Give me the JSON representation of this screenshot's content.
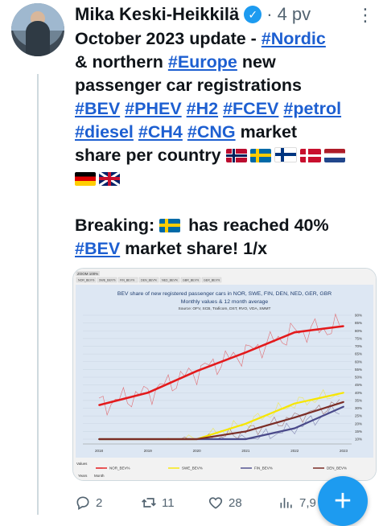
{
  "author": {
    "name": "Mika Keski-Heikkilä",
    "dot": "·",
    "time": "4 pv"
  },
  "tweet": {
    "line1_pre": "October 2023 update - ",
    "tag_nordic": "#Nordic",
    "line2_pre": "& northern ",
    "tag_europe": "#Europe",
    "line2_post": " new",
    "line3": "passenger car registrations",
    "tag_bev": "#BEV",
    "tag_phev": "#PHEV",
    "tag_h2": "#H2",
    "tag_fcev": "#FCEV",
    "tag_petrol": "#petrol",
    "tag_diesel": "#diesel",
    "tag_ch4": "#CH4",
    "tag_cng": "#CNG",
    "line5_post": " market",
    "line6": "share per country",
    "breaking_pre": "Breaking: ",
    "breaking_post": " has reached 40%",
    "tag_bev2": "#BEV",
    "last_post": " market share! 1/x"
  },
  "chart": {
    "title": "BEV share of new registered passenger cars in NOR, SWE, FIN, DEN, NED, GER, GBR",
    "subtitle": "Monthly values & 12 month average",
    "source": "Source: OFV, SCB, Traficom, DST, RVO, VDA, SMMT",
    "toolbar_label": "ZOOM 100%",
    "chips": [
      "NOR_BEV%",
      "SWE_BEV%",
      "FIN_BEV%",
      "DEN_BEV%",
      "NED_BEV%",
      "GBR_BEV%",
      "GER_BEV%"
    ],
    "y_ticks": [
      "90%",
      "85%",
      "80%",
      "75%",
      "70%",
      "65%",
      "60%",
      "55%",
      "50%",
      "45%",
      "40%",
      "35%",
      "30%",
      "25%",
      "20%",
      "15%",
      "10%"
    ],
    "years": [
      "2018",
      "2019",
      "2020",
      "2021",
      "2022",
      "2023"
    ],
    "values_label": "Values",
    "legend": [
      "NOR_BEV%",
      "SWE_BEV%",
      "FIN_BEV%",
      "DEN_BEV%"
    ],
    "bottom_label": "Years",
    "bottom_label2": "Month",
    "colors": {
      "NOR": "#e31a1c",
      "SWE": "#f7e600",
      "FIN": "#4a4a8a",
      "DEN": "#7b2d26",
      "NED": "#f28c28",
      "GBR": "#1f6fc9",
      "GER": "#9a9a9a"
    }
  },
  "chart_data": {
    "type": "line",
    "title": "BEV share of new registered passenger cars in NOR, SWE, FIN, DEN, NED, GER, GBR",
    "subtitle": "Monthly values & 12 month average",
    "x": [
      "2018",
      "2019",
      "2020",
      "2021",
      "2022",
      "2023"
    ],
    "ylim": [
      0,
      90
    ],
    "series": [
      {
        "name": "NOR_BEV%",
        "values": [
          32,
          40,
          54,
          66,
          79,
          83
        ]
      },
      {
        "name": "SWE_BEV%",
        "values": [
          3,
          5,
          10,
          20,
          33,
          40
        ]
      },
      {
        "name": "FIN_BEV%",
        "values": [
          1,
          2,
          4,
          9,
          17,
          31
        ]
      },
      {
        "name": "DEN_BEV%",
        "values": [
          1,
          3,
          8,
          15,
          24,
          34
        ]
      }
    ]
  },
  "actions": {
    "replies": "2",
    "retweets": "11",
    "likes": "28",
    "views": "7,9"
  }
}
